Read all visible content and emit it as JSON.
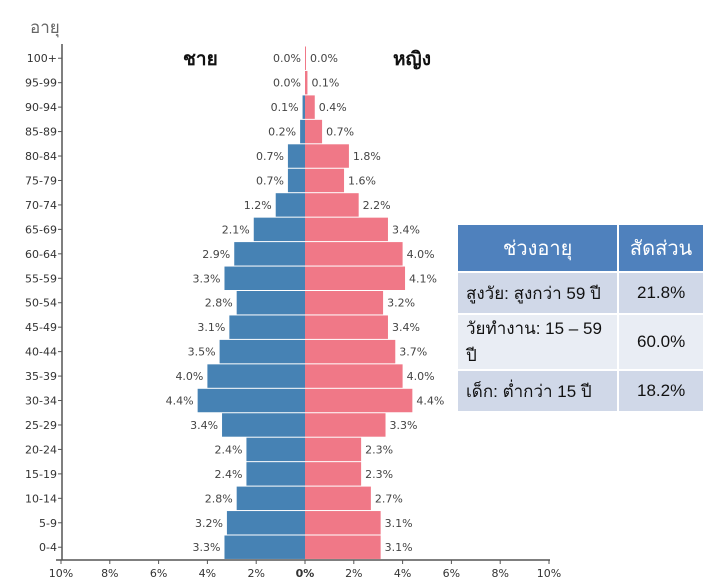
{
  "chart_data": {
    "type": "bar",
    "subtype": "population-pyramid",
    "ylabel": "อายุ",
    "left_label": "ชาย",
    "right_label": "หญิง",
    "categories": [
      "100+",
      "95-99",
      "90-94",
      "85-89",
      "80-84",
      "75-79",
      "70-74",
      "65-69",
      "60-64",
      "55-59",
      "50-54",
      "45-49",
      "40-44",
      "35-39",
      "30-34",
      "25-29",
      "20-24",
      "15-19",
      "10-14",
      "5-9",
      "0-4"
    ],
    "series": [
      {
        "name": "ชาย",
        "color": "#4682b4",
        "values": [
          0.0,
          0.0,
          0.1,
          0.2,
          0.7,
          0.7,
          1.2,
          2.1,
          2.9,
          3.3,
          2.8,
          3.1,
          3.5,
          4.0,
          4.4,
          3.4,
          2.4,
          2.4,
          2.8,
          3.2,
          3.3
        ]
      },
      {
        "name": "หญิง",
        "color": "#f07887",
        "values": [
          0.0,
          0.1,
          0.4,
          0.7,
          1.8,
          1.6,
          2.2,
          3.4,
          4.0,
          4.1,
          3.2,
          3.4,
          3.7,
          4.0,
          4.4,
          3.3,
          2.3,
          2.3,
          2.7,
          3.1,
          3.1
        ]
      }
    ],
    "xlim": [
      -10,
      10
    ],
    "xticks": [
      "10%",
      "8%",
      "6%",
      "4%",
      "2%",
      "0%",
      "2%",
      "4%",
      "6%",
      "8%",
      "10%"
    ],
    "xtick_values": [
      -10,
      -8,
      -6,
      -4,
      -2,
      0,
      2,
      4,
      6,
      8,
      10
    ]
  },
  "table": {
    "headers": [
      "ช่วงอายุ",
      "สัดส่วน"
    ],
    "rows": [
      {
        "label": "สูงวัย: สูงกว่า 59 ปี",
        "value": "21.8%"
      },
      {
        "label": "วัยทำงาน: 15 – 59 ปี",
        "value": "60.0%"
      },
      {
        "label": "เด็ก: ต่ำกว่า 15 ปี",
        "value": "18.2%"
      }
    ]
  }
}
